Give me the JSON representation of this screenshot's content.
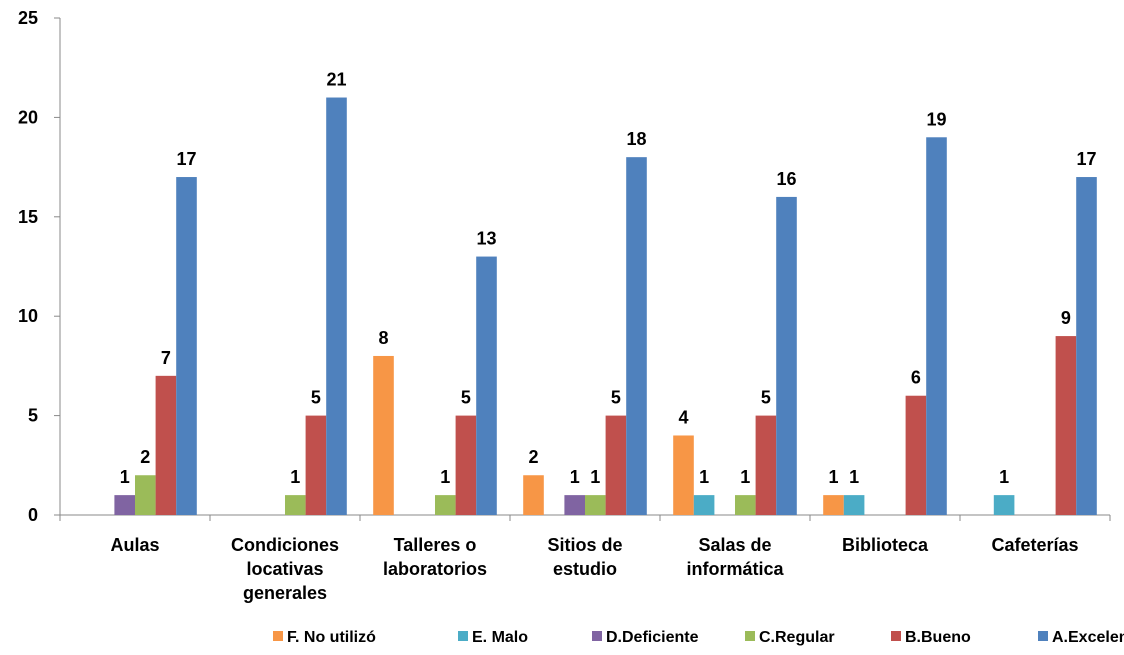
{
  "chart_data": {
    "type": "bar",
    "categories": [
      "Aulas",
      "Condiciones locativas generales",
      "Talleres o laboratorios",
      "Sitios de estudio",
      "Salas de informática",
      "Biblioteca",
      "Cafeterías"
    ],
    "series": [
      {
        "name": "F. No utilizó",
        "color": "#f79646",
        "values": [
          null,
          null,
          8,
          2,
          4,
          1,
          null
        ]
      },
      {
        "name": "E. Malo",
        "color": "#4bacc6",
        "values": [
          null,
          null,
          null,
          null,
          1,
          1,
          1
        ]
      },
      {
        "name": "D.Deficiente",
        "color": "#8064a2",
        "values": [
          1,
          null,
          null,
          1,
          null,
          null,
          null
        ]
      },
      {
        "name": "C.Regular",
        "color": "#9bbb59",
        "values": [
          2,
          1,
          1,
          1,
          1,
          null,
          null
        ]
      },
      {
        "name": "B.Bueno",
        "color": "#c0504d",
        "values": [
          7,
          5,
          5,
          5,
          5,
          6,
          9
        ]
      },
      {
        "name": "A.Excelente",
        "color": "#4f81bd",
        "values": [
          17,
          21,
          13,
          18,
          16,
          19,
          17
        ]
      }
    ],
    "ylim": [
      0,
      25
    ],
    "yticks": [
      0,
      5,
      10,
      15,
      20,
      25
    ],
    "grid": false,
    "legend": "bottom"
  }
}
